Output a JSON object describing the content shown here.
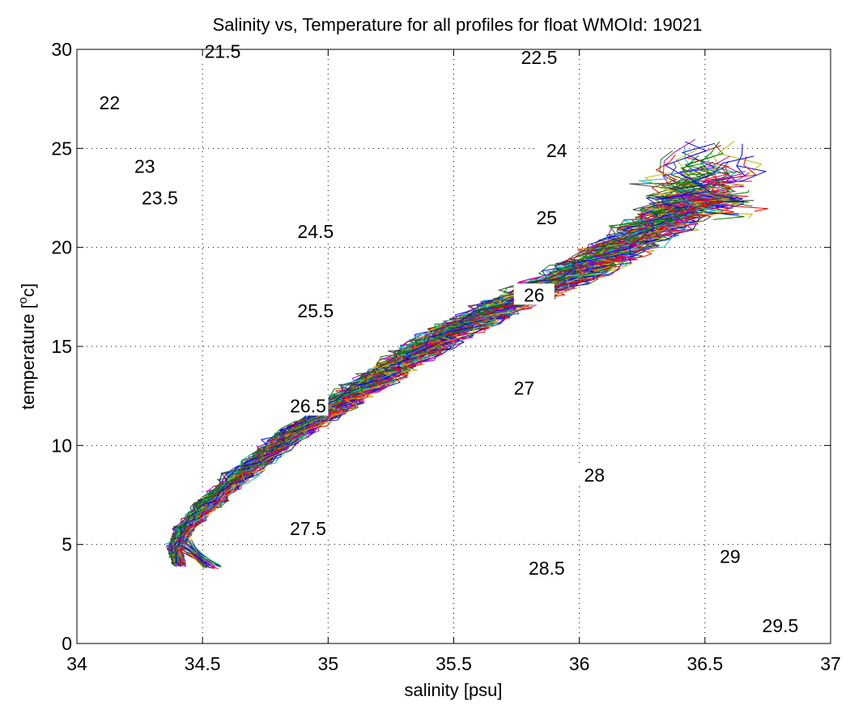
{
  "chart_data": {
    "type": "line",
    "title": "Salinity vs, Temperature for all profiles for float WMOId: 19021",
    "xlabel": "salinity [psu]",
    "ylabel_base": "temperature [",
    "ylabel_sup": "o",
    "ylabel_end": "c]",
    "xlim": [
      34,
      37
    ],
    "ylim": [
      0,
      30
    ],
    "grid": true,
    "x_ticks": [
      34,
      34.5,
      35,
      35.5,
      36,
      36.5,
      37
    ],
    "x_tick_labels": [
      "34",
      "34.5",
      "35",
      "35.5",
      "36",
      "36.5",
      "37"
    ],
    "y_ticks": [
      0,
      5,
      10,
      15,
      20,
      25,
      30
    ],
    "y_tick_labels": [
      "0",
      "5",
      "10",
      "15",
      "20",
      "25",
      "30"
    ],
    "density_contours": [
      {
        "label": "21.5",
        "label_s": 34.58,
        "label_t": 29.9
      },
      {
        "label": "22",
        "label_s": 34.13,
        "label_t": 27.3
      },
      {
        "label": "22.5",
        "label_s": 35.84,
        "label_t": 29.6
      },
      {
        "label": "23",
        "label_s": 34.27,
        "label_t": 24.1
      },
      {
        "label": "23.5",
        "label_s": 34.33,
        "label_t": 22.5
      },
      {
        "label": "24",
        "label_s": 35.91,
        "label_t": 24.9
      },
      {
        "label": "24.5",
        "label_s": 34.95,
        "label_t": 20.8
      },
      {
        "label": "25",
        "label_s": 35.87,
        "label_t": 21.5
      },
      {
        "label": "25.5",
        "label_s": 34.95,
        "label_t": 16.8
      },
      {
        "label": "26",
        "label_s": 35.82,
        "label_t": 17.6
      },
      {
        "label": "26.5",
        "label_s": 34.92,
        "label_t": 12.0
      },
      {
        "label": "27",
        "label_s": 35.78,
        "label_t": 12.9
      },
      {
        "label": "27.5",
        "label_s": 34.92,
        "label_t": 5.8
      },
      {
        "label": "28",
        "label_s": 36.06,
        "label_t": 8.5
      },
      {
        "label": "28.5",
        "label_s": 35.87,
        "label_t": 3.8
      },
      {
        "label": "29",
        "label_s": 36.6,
        "label_t": 4.4
      },
      {
        "label": "29.5",
        "label_s": 36.8,
        "label_t": 0.9
      }
    ],
    "profile_envelope": [
      [
        34.41,
        4.0
      ],
      [
        34.39,
        4.8
      ],
      [
        34.43,
        5.8
      ],
      [
        34.52,
        7.0
      ],
      [
        34.65,
        8.5
      ],
      [
        34.82,
        10.2
      ],
      [
        35.0,
        11.7
      ],
      [
        35.15,
        13.0
      ],
      [
        35.32,
        14.4
      ],
      [
        35.5,
        15.8
      ],
      [
        35.7,
        17.0
      ],
      [
        35.9,
        18.2
      ],
      [
        36.1,
        19.5
      ],
      [
        36.3,
        21.0
      ],
      [
        36.45,
        22.5
      ],
      [
        36.55,
        24.0
      ]
    ],
    "profile_count": 80,
    "series_colors": [
      "#0000ff",
      "#008000",
      "#ff0000",
      "#00bfbf",
      "#bf00bf",
      "#bfbf00",
      "#404040"
    ]
  }
}
